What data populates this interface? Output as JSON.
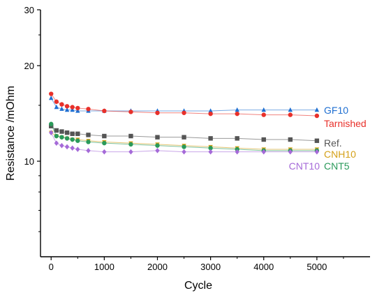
{
  "chart_data": {
    "type": "scatter",
    "xlabel": "Cycle",
    "ylabel": "Resistance /mOhm",
    "xlim": [
      -200,
      6000
    ],
    "ylim": [
      5,
      30
    ],
    "yscale": "log",
    "x_ticks": [
      0,
      1000,
      2000,
      3000,
      4000,
      5000
    ],
    "x_tick_labels": [
      "0",
      "1000",
      "2000",
      "3000",
      "4000",
      "5000"
    ],
    "y_ticks": [
      10,
      20,
      30
    ],
    "y_tick_labels": [
      "10",
      "20",
      "30"
    ],
    "grid": false,
    "legend": "direct labels at right end of series",
    "series": [
      {
        "name": "GF10",
        "color": "#1f6fd1",
        "marker": "triangle",
        "x": [
          0,
          100,
          200,
          300,
          400,
          500,
          700,
          1000,
          1500,
          2000,
          2500,
          3000,
          3500,
          4000,
          4500,
          5000
        ],
        "y": [
          15.8,
          14.8,
          14.6,
          14.5,
          14.5,
          14.4,
          14.4,
          14.4,
          14.4,
          14.4,
          14.4,
          14.4,
          14.5,
          14.5,
          14.5,
          14.5
        ]
      },
      {
        "name": "Tarnished",
        "color": "#e8302a",
        "marker": "circle",
        "x": [
          0,
          100,
          200,
          300,
          400,
          500,
          700,
          1000,
          1500,
          2000,
          2500,
          3000,
          3500,
          4000,
          4500,
          5000
        ],
        "y": [
          16.3,
          15.4,
          15.1,
          14.9,
          14.8,
          14.7,
          14.6,
          14.4,
          14.3,
          14.2,
          14.2,
          14.1,
          14.1,
          14.0,
          14.0,
          13.9
        ]
      },
      {
        "name": "Ref.",
        "color": "#555555",
        "marker": "square",
        "x": [
          0,
          100,
          200,
          300,
          400,
          500,
          700,
          1000,
          1500,
          2000,
          2500,
          3000,
          3500,
          4000,
          4500,
          5000
        ],
        "y": [
          12.9,
          12.5,
          12.4,
          12.3,
          12.2,
          12.2,
          12.1,
          12.0,
          12.0,
          11.9,
          11.9,
          11.8,
          11.8,
          11.7,
          11.7,
          11.6
        ]
      },
      {
        "name": "CNH10",
        "color": "#d4a017",
        "marker": "triangle-down",
        "x": [
          0,
          100,
          200,
          300,
          400,
          500,
          700,
          1000,
          1500,
          2000,
          2500,
          3000,
          3500,
          4000,
          4500,
          5000
        ],
        "y": [
          12.3,
          12.0,
          11.9,
          11.8,
          11.7,
          11.7,
          11.6,
          11.5,
          11.4,
          11.3,
          11.2,
          11.1,
          11.0,
          10.9,
          10.9,
          10.9
        ]
      },
      {
        "name": "CNT5",
        "color": "#2a9a5a",
        "marker": "circle",
        "x": [
          0,
          100,
          200,
          300,
          400,
          500,
          700,
          1000,
          1500,
          2000,
          2500,
          3000,
          3500,
          4000,
          4500,
          5000
        ],
        "y": [
          13.1,
          12.0,
          11.9,
          11.8,
          11.7,
          11.6,
          11.5,
          11.4,
          11.3,
          11.2,
          11.1,
          11.0,
          10.9,
          10.8,
          10.8,
          10.8
        ]
      },
      {
        "name": "CNT10",
        "color": "#a56ad8",
        "marker": "diamond",
        "x": [
          0,
          100,
          200,
          300,
          400,
          500,
          700,
          1000,
          1500,
          2000,
          2500,
          3000,
          3500,
          4000,
          4500,
          5000
        ],
        "y": [
          12.3,
          11.4,
          11.2,
          11.1,
          11.0,
          10.9,
          10.8,
          10.7,
          10.7,
          10.8,
          10.7,
          10.7,
          10.7,
          10.7,
          10.7,
          10.7
        ]
      }
    ],
    "annotations": [
      {
        "text": "GF10",
        "color": "#1f6fd1"
      },
      {
        "text": "Tarnished",
        "color": "#e8302a"
      },
      {
        "text": "Ref.",
        "color": "#555555"
      },
      {
        "text": "CNH10",
        "color": "#d4a017"
      },
      {
        "text": "CNT10",
        "color": "#a56ad8"
      },
      {
        "text": "CNT5",
        "color": "#2a9a5a"
      }
    ]
  }
}
